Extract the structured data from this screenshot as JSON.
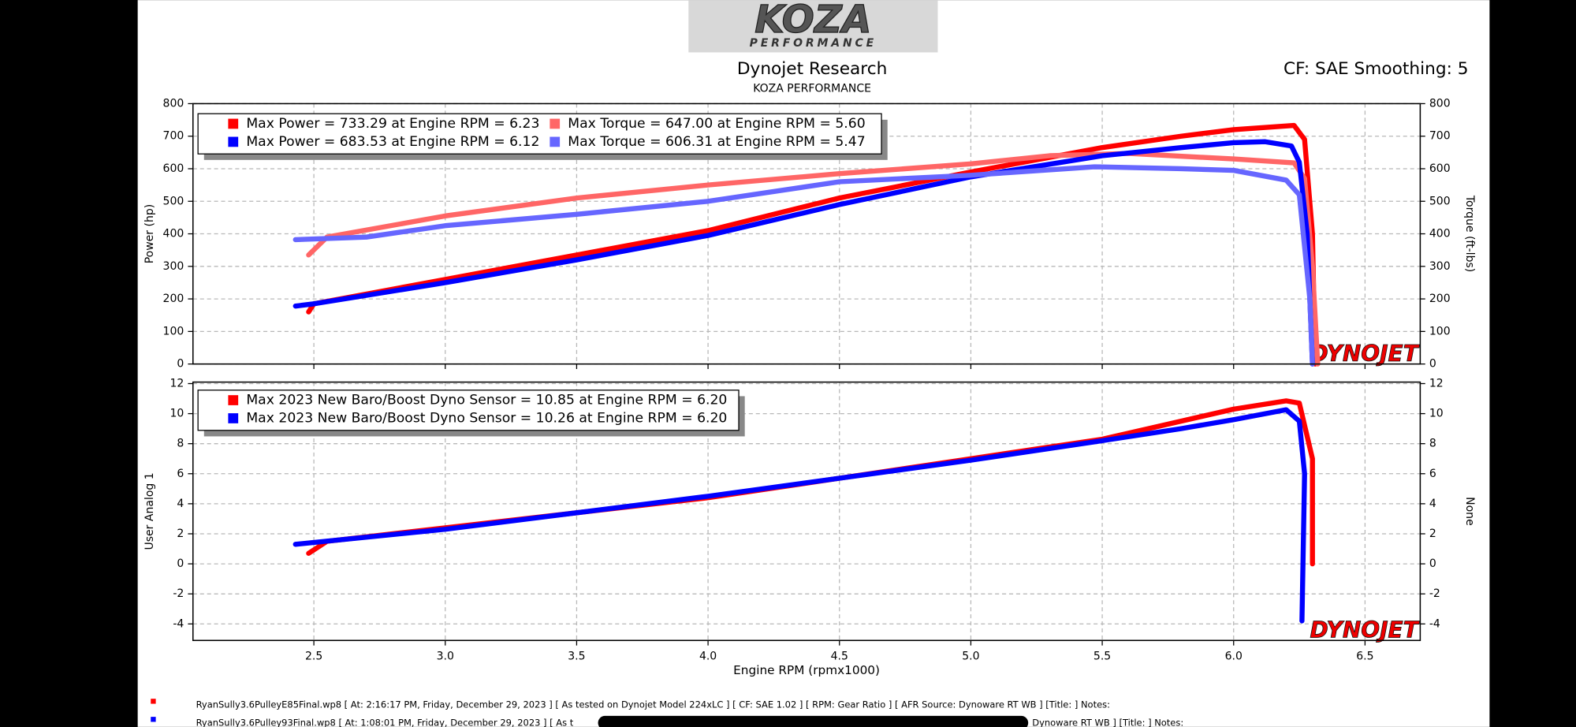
{
  "logo": {
    "text": "KOZA",
    "subtext": "PERFORMANCE"
  },
  "watermark": "DYNOJET",
  "chart_data": [
    {
      "type": "line",
      "title": "Dynojet Research",
      "subtitle": "KOZA PERFORMANCE",
      "annotation": "CF: SAE Smoothing: 5",
      "ylabel": "Power (hp)",
      "y2label": "Torque (ft-lbs)",
      "xlim": [
        2.04,
        6.71
      ],
      "ylim": [
        0,
        800
      ],
      "yticks": [
        0,
        100,
        200,
        300,
        400,
        500,
        600,
        700,
        800
      ],
      "y2lim": [
        0,
        800
      ],
      "y2ticks": [
        0,
        100,
        200,
        300,
        400,
        500,
        600,
        700,
        800
      ],
      "grid": true,
      "series": [
        {
          "name": "Max Power = 733.29 at Engine RPM = 6.23",
          "color": "#ff0000",
          "x": [
            2.48,
            2.5,
            3.0,
            3.5,
            4.0,
            4.5,
            5.0,
            5.5,
            5.8,
            6.0,
            6.23,
            6.27,
            6.3,
            6.31
          ],
          "values": [
            160,
            185,
            260,
            335,
            410,
            510,
            590,
            665,
            700,
            720,
            733,
            690,
            400,
            0
          ]
        },
        {
          "name": "Max Torque = 647.00 at Engine RPM = 5.60",
          "color": "#ff6666",
          "axis": "y2",
          "x": [
            2.48,
            2.55,
            3.0,
            3.5,
            4.0,
            4.5,
            5.0,
            5.3,
            5.6,
            6.0,
            6.23,
            6.27,
            6.3,
            6.32
          ],
          "values": [
            335,
            390,
            455,
            510,
            550,
            585,
            615,
            640,
            647,
            630,
            618,
            570,
            300,
            0
          ]
        },
        {
          "name": "Max Power = 683.53 at Engine RPM = 6.12",
          "color": "#0000ff",
          "x": [
            2.43,
            2.5,
            3.0,
            3.5,
            4.0,
            4.5,
            5.0,
            5.5,
            5.8,
            6.0,
            6.12,
            6.22,
            6.25,
            6.28,
            6.3
          ],
          "values": [
            178,
            185,
            250,
            320,
            395,
            490,
            575,
            640,
            665,
            680,
            683,
            670,
            620,
            400,
            0
          ]
        },
        {
          "name": "Max Torque = 606.31 at Engine RPM = 5.47",
          "color": "#6666ff",
          "axis": "y2",
          "x": [
            2.43,
            2.7,
            3.0,
            3.5,
            4.0,
            4.5,
            5.0,
            5.47,
            5.8,
            6.0,
            6.2,
            6.25,
            6.29,
            6.3
          ],
          "values": [
            382,
            390,
            425,
            460,
            500,
            560,
            580,
            606,
            600,
            595,
            565,
            520,
            200,
            0
          ]
        }
      ]
    },
    {
      "type": "line",
      "ylabel": "User Analog 1",
      "y2label": "None",
      "xlabel": "Engine RPM (rpmx1000)",
      "xlim": [
        2.04,
        6.71
      ],
      "xticks": [
        2.5,
        {
          "value": 3,
          "label": "3.0"
        },
        3.5,
        {
          "value": 4,
          "label": "4.0"
        },
        4.5,
        {
          "value": 5,
          "label": "5.0"
        },
        5.5,
        {
          "value": 6,
          "label": "6.0"
        },
        6.5
      ],
      "ylim": [
        -5.1,
        12.1
      ],
      "yticks": [
        -4,
        -2,
        0,
        2,
        4,
        6,
        8,
        10,
        12
      ],
      "grid": true,
      "series": [
        {
          "name": "Max 2023 New Baro/Boost Dyno Sensor = 10.85 at Engine RPM = 6.20",
          "color": "#ff0000",
          "x": [
            2.48,
            2.55,
            3.0,
            3.5,
            4.0,
            4.5,
            5.0,
            5.5,
            5.8,
            6.0,
            6.2,
            6.25,
            6.3,
            6.3
          ],
          "values": [
            0.7,
            1.5,
            2.4,
            3.4,
            4.4,
            5.7,
            7.0,
            8.3,
            9.5,
            10.3,
            10.85,
            10.7,
            7,
            0
          ]
        },
        {
          "name": "Max 2023 New Baro/Boost Dyno Sensor = 10.26 at Engine RPM = 6.20",
          "color": "#0000ff",
          "x": [
            2.43,
            3.0,
            3.5,
            4.0,
            4.5,
            5.0,
            5.5,
            5.8,
            6.0,
            6.2,
            6.25,
            6.27,
            6.26
          ],
          "values": [
            1.3,
            2.3,
            3.4,
            4.5,
            5.7,
            6.9,
            8.2,
            9.0,
            9.6,
            10.26,
            9.5,
            6,
            -3.8
          ]
        }
      ]
    }
  ],
  "notes": [
    {
      "text": "RyanSully3.6PulleyE85Final.wp8 [ At: 2:16:17 PM, Friday, December 29, 2023 ] [ As tested on Dynojet Model 224xLC ] [ CF: SAE 1.02 ] [ RPM: Gear Ratio ] [ AFR Source: Dynoware RT WB ] [Title: ]  Notes:"
    },
    {
      "text": "RyanSully3.6Pulley93Final.wp8 [ At: 1:08:01 PM, Friday, December 29, 2023 ] [ As t",
      "tail": "Dynoware RT WB ] [Title: ]  Notes:"
    }
  ]
}
